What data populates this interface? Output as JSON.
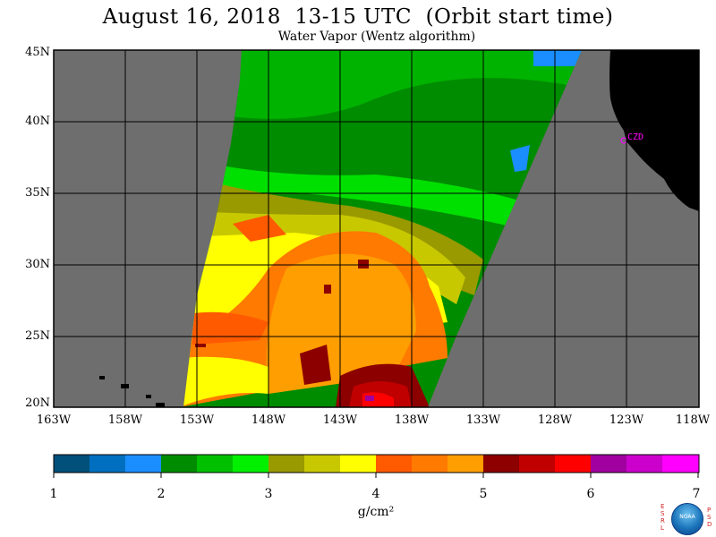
{
  "title": "August 16, 2018  13-15 UTC  (Orbit start time)",
  "subtitle": "Water Vapor (Wentz algorithm)",
  "lat_labels": [
    "45N",
    "40N",
    "35N",
    "30N",
    "25N",
    "20N"
  ],
  "lon_labels": [
    "163W",
    "158W",
    "153W",
    "148W",
    "143W",
    "138W",
    "133W",
    "128W",
    "123W",
    "118W"
  ],
  "station_label": "CZD",
  "colorbar": {
    "ticks": [
      "1",
      "2",
      "3",
      "4",
      "5",
      "6",
      "7"
    ],
    "unit": "g/cm²",
    "colors": [
      "#00507a",
      "#006fc0",
      "#1a8eff",
      "#008c00",
      "#00c000",
      "#00f000",
      "#999900",
      "#c8c800",
      "#ffff00",
      "#ff5a00",
      "#ff7a00",
      "#ff9e00",
      "#8c0000",
      "#c00000",
      "#ff0000",
      "#a000a0",
      "#cc00cc",
      "#ff00ff"
    ]
  },
  "colors": {
    "no_data": "#6e6e6e",
    "land": "#000000",
    "grid": "#000000"
  },
  "logo": {
    "left_letters": "ESRL",
    "right_letters": "PSD",
    "disc_text": "NOAA"
  }
}
